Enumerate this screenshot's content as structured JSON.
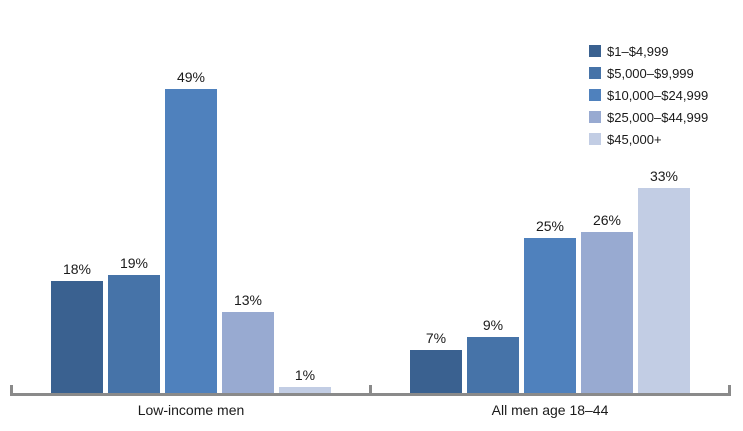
{
  "chart_data": {
    "type": "bar",
    "title": "",
    "categories": [
      "Low-income men",
      "All men age 18–44"
    ],
    "series": [
      {
        "name": "$1–$4,999",
        "color": "#3A6190",
        "values": [
          18,
          7
        ]
      },
      {
        "name": "$5,000–$9,999",
        "color": "#4673A8",
        "values": [
          19,
          9
        ]
      },
      {
        "name": "$10,000–$24,999",
        "color": "#4F81BD",
        "values": [
          49,
          25
        ]
      },
      {
        "name": "$25,000–$44,999",
        "color": "#98AAD1",
        "values": [
          13,
          26
        ]
      },
      {
        "name": "$45,000+",
        "color": "#C2CDE4",
        "values": [
          1,
          33
        ]
      }
    ],
    "value_suffix": "%",
    "data_labels": [
      "18%",
      "19%",
      "49%",
      "13%",
      "1%",
      "7%",
      "9%",
      "25%",
      "26%",
      "33%"
    ],
    "ylim": [
      0,
      49
    ],
    "grid": false,
    "legend_position": "top-right",
    "axis_color": "#8A8A8A",
    "text_color": "#1A1A1A",
    "background_color": "#FFFFFF"
  }
}
